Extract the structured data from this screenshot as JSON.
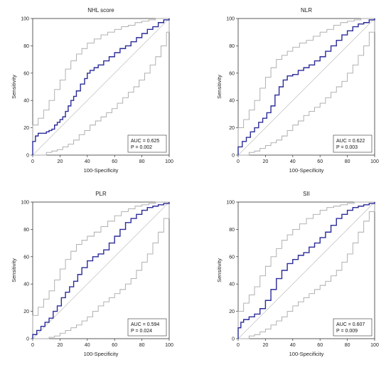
{
  "figure": {
    "background": "#ffffff",
    "roc_color": "#2b2b9a",
    "ci_color": "#a8a8a8",
    "reference_color": "#bdbdbd"
  },
  "chart_data": [
    {
      "type": "line",
      "title": "NHL score",
      "xlabel": "100-Specificity",
      "ylabel": "Sensitivity",
      "xlim": [
        0,
        100
      ],
      "ylim": [
        0,
        100
      ],
      "xticks": [
        0,
        20,
        40,
        60,
        80,
        100
      ],
      "yticks": [
        0,
        20,
        40,
        60,
        80,
        100
      ],
      "grid": false,
      "legend": {
        "position": "bottom-right",
        "auc": "AUC = 0.625",
        "p": "P = 0.002"
      },
      "series": [
        {
          "role": "roc",
          "x": [
            0,
            0,
            2,
            2,
            4,
            6,
            8,
            10,
            12,
            14,
            16,
            18,
            20,
            22,
            24,
            26,
            28,
            30,
            32,
            35,
            38,
            40,
            42,
            45,
            48,
            52,
            56,
            60,
            64,
            68,
            72,
            76,
            80,
            84,
            88,
            92,
            96,
            100
          ],
          "y": [
            0,
            10,
            12,
            14,
            16,
            16,
            16,
            17,
            18,
            19,
            22,
            24,
            26,
            28,
            32,
            36,
            40,
            43,
            47,
            52,
            56,
            60,
            62,
            64,
            66,
            69,
            72,
            75,
            78,
            80,
            83,
            86,
            89,
            92,
            94,
            97,
            99,
            100
          ]
        },
        {
          "role": "ci-upper",
          "x": [
            0,
            0,
            4,
            8,
            12,
            16,
            20,
            24,
            28,
            32,
            36,
            40,
            45,
            50,
            55,
            60,
            65,
            70,
            75,
            80,
            85,
            90,
            95,
            100
          ],
          "y": [
            0,
            22,
            27,
            33,
            40,
            48,
            55,
            63,
            69,
            74,
            78,
            82,
            85,
            88,
            90,
            92,
            94,
            95,
            97,
            98,
            99,
            100,
            100,
            100
          ]
        },
        {
          "role": "ci-lower",
          "x": [
            0,
            10,
            14,
            18,
            22,
            26,
            30,
            34,
            38,
            42,
            46,
            50,
            54,
            58,
            62,
            66,
            70,
            74,
            78,
            82,
            86,
            90,
            94,
            98,
            100
          ],
          "y": [
            0,
            2,
            3,
            4,
            6,
            8,
            11,
            15,
            18,
            22,
            25,
            28,
            31,
            34,
            38,
            42,
            46,
            50,
            55,
            60,
            66,
            72,
            80,
            90,
            100
          ]
        },
        {
          "role": "reference",
          "x": [
            0,
            100
          ],
          "y": [
            0,
            100
          ]
        }
      ]
    },
    {
      "type": "line",
      "title": "NLR",
      "xlabel": "100-Specificity",
      "ylabel": "Sensitivity",
      "xlim": [
        0,
        100
      ],
      "ylim": [
        0,
        100
      ],
      "xticks": [
        0,
        20,
        40,
        60,
        80,
        100
      ],
      "yticks": [
        0,
        20,
        40,
        60,
        80,
        100
      ],
      "grid": false,
      "legend": {
        "position": "bottom-right",
        "auc": "AUC = 0.622",
        "p": "P = 0.003"
      },
      "series": [
        {
          "role": "roc",
          "x": [
            0,
            0,
            3,
            6,
            9,
            12,
            15,
            18,
            21,
            24,
            27,
            30,
            33,
            36,
            40,
            44,
            48,
            52,
            56,
            60,
            64,
            68,
            72,
            76,
            80,
            84,
            88,
            92,
            96,
            100
          ],
          "y": [
            0,
            6,
            10,
            13,
            17,
            20,
            24,
            27,
            31,
            36,
            44,
            50,
            55,
            58,
            59,
            62,
            64,
            66,
            69,
            72,
            76,
            80,
            84,
            88,
            91,
            94,
            96,
            97,
            99,
            100
          ]
        },
        {
          "role": "ci-upper",
          "x": [
            0,
            0,
            4,
            8,
            12,
            16,
            20,
            24,
            28,
            32,
            36,
            40,
            45,
            50,
            55,
            60,
            65,
            70,
            75,
            80,
            85,
            90,
            95,
            100
          ],
          "y": [
            0,
            20,
            26,
            33,
            40,
            49,
            57,
            64,
            70,
            73,
            76,
            79,
            82,
            84,
            87,
            90,
            92,
            95,
            97,
            98,
            99,
            100,
            100,
            100
          ]
        },
        {
          "role": "ci-lower",
          "x": [
            0,
            8,
            12,
            16,
            20,
            24,
            28,
            32,
            36,
            40,
            44,
            48,
            52,
            56,
            60,
            64,
            68,
            72,
            76,
            80,
            84,
            88,
            92,
            96,
            100
          ],
          "y": [
            0,
            2,
            3,
            5,
            7,
            9,
            11,
            14,
            18,
            22,
            25,
            29,
            32,
            35,
            38,
            42,
            46,
            50,
            54,
            60,
            66,
            73,
            80,
            90,
            100
          ]
        },
        {
          "role": "reference",
          "x": [
            0,
            100
          ],
          "y": [
            0,
            100
          ]
        }
      ]
    },
    {
      "type": "line",
      "title": "PLR",
      "xlabel": "100-Specificity",
      "ylabel": "Sensitivity",
      "xlim": [
        0,
        100
      ],
      "ylim": [
        0,
        100
      ],
      "xticks": [
        0,
        20,
        40,
        60,
        80,
        100
      ],
      "yticks": [
        0,
        20,
        40,
        60,
        80,
        100
      ],
      "grid": false,
      "legend": {
        "position": "bottom-right",
        "auc": "AUC = 0.594",
        "p": "P = 0.024"
      },
      "series": [
        {
          "role": "roc",
          "x": [
            0,
            0,
            3,
            6,
            9,
            12,
            15,
            18,
            21,
            24,
            27,
            30,
            33,
            36,
            40,
            44,
            48,
            52,
            56,
            60,
            64,
            68,
            72,
            76,
            80,
            84,
            88,
            92,
            96,
            100
          ],
          "y": [
            0,
            3,
            6,
            9,
            12,
            15,
            20,
            24,
            30,
            34,
            38,
            42,
            47,
            52,
            57,
            60,
            62,
            65,
            70,
            75,
            80,
            85,
            88,
            91,
            94,
            96,
            97,
            98,
            99,
            100
          ]
        },
        {
          "role": "ci-upper",
          "x": [
            0,
            0,
            4,
            8,
            12,
            16,
            20,
            24,
            28,
            32,
            36,
            40,
            45,
            50,
            55,
            60,
            65,
            70,
            75,
            80,
            85,
            90,
            95,
            100
          ],
          "y": [
            0,
            17,
            23,
            29,
            35,
            43,
            51,
            58,
            64,
            69,
            72,
            75,
            78,
            82,
            86,
            90,
            93,
            95,
            97,
            98,
            99,
            100,
            100,
            100
          ]
        },
        {
          "role": "ci-lower",
          "x": [
            0,
            12,
            16,
            20,
            24,
            28,
            32,
            36,
            40,
            44,
            48,
            52,
            56,
            60,
            64,
            68,
            72,
            76,
            80,
            84,
            88,
            92,
            96,
            100
          ],
          "y": [
            0,
            1,
            2,
            4,
            6,
            8,
            10,
            13,
            16,
            20,
            24,
            27,
            30,
            33,
            36,
            40,
            44,
            50,
            56,
            62,
            70,
            78,
            88,
            100
          ]
        },
        {
          "role": "reference",
          "x": [
            0,
            100
          ],
          "y": [
            0,
            100
          ]
        }
      ]
    },
    {
      "type": "line",
      "title": "SII",
      "xlabel": "100-Specificity",
      "ylabel": "Sensitivity",
      "xlim": [
        0,
        100
      ],
      "ylim": [
        0,
        100
      ],
      "xticks": [
        0,
        20,
        40,
        60,
        80,
        100
      ],
      "yticks": [
        0,
        20,
        40,
        60,
        80,
        100
      ],
      "grid": false,
      "legend": {
        "position": "bottom-right",
        "auc": "AUC = 0.607",
        "p": "P = 0.009"
      },
      "series": [
        {
          "role": "roc",
          "x": [
            0,
            0,
            2,
            4,
            8,
            12,
            16,
            20,
            24,
            28,
            32,
            36,
            40,
            44,
            48,
            52,
            56,
            60,
            64,
            68,
            72,
            76,
            80,
            84,
            88,
            92,
            96,
            100
          ],
          "y": [
            0,
            8,
            12,
            14,
            16,
            18,
            22,
            28,
            36,
            44,
            50,
            55,
            58,
            61,
            63,
            67,
            70,
            74,
            78,
            83,
            88,
            91,
            94,
            96,
            97,
            98,
            99,
            100
          ]
        },
        {
          "role": "ci-upper",
          "x": [
            0,
            0,
            4,
            8,
            12,
            16,
            20,
            24,
            28,
            32,
            36,
            40,
            45,
            50,
            55,
            60,
            65,
            70,
            75,
            80,
            85,
            90,
            95,
            100
          ],
          "y": [
            0,
            20,
            26,
            32,
            38,
            46,
            53,
            60,
            66,
            72,
            76,
            80,
            84,
            88,
            91,
            94,
            96,
            97,
            98,
            99,
            100,
            100,
            100,
            100
          ]
        },
        {
          "role": "ci-lower",
          "x": [
            0,
            8,
            12,
            16,
            20,
            24,
            28,
            32,
            36,
            40,
            44,
            48,
            52,
            56,
            60,
            64,
            68,
            72,
            76,
            80,
            84,
            88,
            92,
            96,
            100
          ],
          "y": [
            0,
            2,
            3,
            5,
            7,
            10,
            13,
            16,
            20,
            24,
            27,
            30,
            33,
            36,
            39,
            42,
            46,
            50,
            56,
            62,
            70,
            78,
            86,
            93,
            100
          ]
        },
        {
          "role": "reference",
          "x": [
            0,
            100
          ],
          "y": [
            0,
            100
          ]
        }
      ]
    }
  ]
}
